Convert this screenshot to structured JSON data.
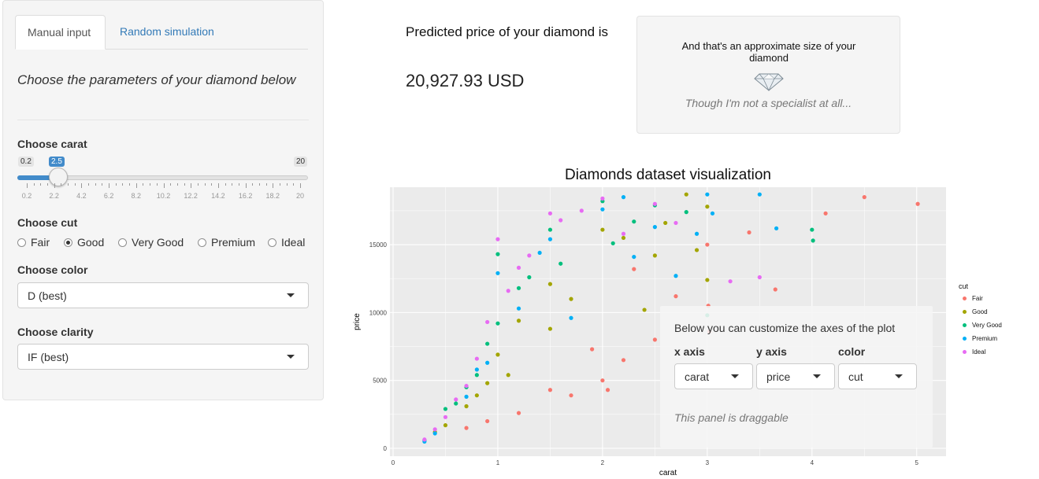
{
  "sidebar": {
    "tabs": [
      {
        "label": "Manual input",
        "active": true
      },
      {
        "label": "Random simulation",
        "active": false
      }
    ],
    "subtitle": "Choose the parameters of your diamond below",
    "carat": {
      "label": "Choose carat",
      "min_label": "0.2",
      "max_label": "20",
      "value_label": "2.5",
      "value": 2.5,
      "min": 0.2,
      "max": 20,
      "ticks": [
        "0.2",
        "2.2",
        "4.2",
        "6.2",
        "8.2",
        "10.2",
        "12.2",
        "14.2",
        "16.2",
        "18.2",
        "20"
      ]
    },
    "cut": {
      "label": "Choose cut",
      "options": [
        "Fair",
        "Good",
        "Very Good",
        "Premium",
        "Ideal"
      ],
      "selected": "Good"
    },
    "color": {
      "label": "Choose color",
      "value": "D (best)"
    },
    "clarity": {
      "label": "Choose clarity",
      "value": "IF (best)"
    }
  },
  "prediction": {
    "title": "Predicted price of your diamond is",
    "value": "20,927.93 USD"
  },
  "size_box": {
    "title": "And that's an approximate size of your diamond",
    "icon": "diamond-icon",
    "note": "Though I'm not a specialist at all..."
  },
  "chart_data": {
    "type": "scatter",
    "title": "Diamonds dataset visualization",
    "xlabel": "carat",
    "ylabel": "price",
    "xlim": [
      0,
      5.25
    ],
    "ylim": [
      0,
      19000
    ],
    "xticks": [
      "0",
      "1",
      "2",
      "3",
      "4",
      "5"
    ],
    "yticks": [
      "0",
      "5000",
      "10000",
      "15000"
    ],
    "grid": true,
    "legend": {
      "title": "cut",
      "placement": "right",
      "entries": [
        {
          "name": "Fair",
          "color": "#f8766d"
        },
        {
          "name": "Good",
          "color": "#a3a500"
        },
        {
          "name": "Very Good",
          "color": "#00bf7d"
        },
        {
          "name": "Premium",
          "color": "#00b0f6"
        },
        {
          "name": "Ideal",
          "color": "#e76bf3"
        }
      ]
    },
    "series": [
      {
        "name": "Fair",
        "points": [
          [
            4.5,
            18500
          ],
          [
            5.01,
            18000
          ],
          [
            4.13,
            17300
          ],
          [
            3.4,
            15900
          ],
          [
            3.65,
            11700
          ],
          [
            3.02,
            8600
          ],
          [
            2.5,
            8000
          ],
          [
            2.2,
            6500
          ],
          [
            2.0,
            5000
          ],
          [
            1.7,
            3900
          ],
          [
            1.5,
            4300
          ],
          [
            3.0,
            15000
          ],
          [
            2.7,
            11200
          ],
          [
            1.2,
            2600
          ],
          [
            0.9,
            2000
          ],
          [
            0.7,
            1500
          ],
          [
            2.3,
            13200
          ],
          [
            1.9,
            7300
          ],
          [
            3.01,
            10500
          ],
          [
            2.05,
            4300
          ]
        ]
      },
      {
        "name": "Good",
        "points": [
          [
            2.8,
            18700
          ],
          [
            3.0,
            17800
          ],
          [
            2.5,
            14200
          ],
          [
            2.0,
            16100
          ],
          [
            1.5,
            12100
          ],
          [
            1.0,
            6900
          ],
          [
            1.2,
            9400
          ],
          [
            0.9,
            4800
          ],
          [
            0.7,
            3100
          ],
          [
            0.5,
            1700
          ],
          [
            2.2,
            15500
          ],
          [
            1.7,
            11000
          ],
          [
            0.4,
            1200
          ],
          [
            3.0,
            12400
          ],
          [
            2.6,
            16600
          ],
          [
            1.5,
            8800
          ],
          [
            1.1,
            5400
          ],
          [
            0.8,
            3900
          ],
          [
            2.4,
            10200
          ],
          [
            2.9,
            14600
          ]
        ]
      },
      {
        "name": "Very Good",
        "points": [
          [
            4.0,
            16100
          ],
          [
            4.01,
            15300
          ],
          [
            2.5,
            17900
          ],
          [
            2.0,
            18200
          ],
          [
            1.5,
            16100
          ],
          [
            1.0,
            14300
          ],
          [
            1.2,
            11800
          ],
          [
            0.9,
            7700
          ],
          [
            0.7,
            4500
          ],
          [
            0.5,
            2900
          ],
          [
            0.3,
            600
          ],
          [
            2.3,
            16700
          ],
          [
            1.6,
            13600
          ],
          [
            1.0,
            9200
          ],
          [
            0.8,
            5400
          ],
          [
            2.8,
            17400
          ],
          [
            2.1,
            15100
          ],
          [
            1.3,
            12600
          ],
          [
            0.6,
            3300
          ],
          [
            3.0,
            9800
          ]
        ]
      },
      {
        "name": "Premium",
        "points": [
          [
            3.5,
            18700
          ],
          [
            3.66,
            16200
          ],
          [
            3.0,
            18700
          ],
          [
            2.5,
            16300
          ],
          [
            2.0,
            17600
          ],
          [
            1.5,
            15400
          ],
          [
            1.0,
            12900
          ],
          [
            1.2,
            10300
          ],
          [
            0.9,
            6300
          ],
          [
            0.7,
            3800
          ],
          [
            0.4,
            1100
          ],
          [
            2.3,
            14100
          ],
          [
            1.7,
            9600
          ],
          [
            2.7,
            12700
          ],
          [
            3.05,
            17300
          ],
          [
            2.2,
            18500
          ],
          [
            1.4,
            14400
          ],
          [
            0.8,
            5800
          ],
          [
            0.3,
            500
          ],
          [
            2.9,
            15800
          ]
        ]
      },
      {
        "name": "Ideal",
        "points": [
          [
            3.5,
            12600
          ],
          [
            3.22,
            12300
          ],
          [
            2.5,
            18000
          ],
          [
            2.0,
            18400
          ],
          [
            1.5,
            17300
          ],
          [
            1.0,
            15400
          ],
          [
            1.2,
            13300
          ],
          [
            0.9,
            9300
          ],
          [
            0.7,
            4600
          ],
          [
            0.5,
            2300
          ],
          [
            0.3,
            650
          ],
          [
            1.6,
            16800
          ],
          [
            2.2,
            15800
          ],
          [
            1.1,
            11600
          ],
          [
            0.8,
            6600
          ],
          [
            2.7,
            16600
          ],
          [
            1.8,
            17500
          ],
          [
            1.3,
            14200
          ],
          [
            0.6,
            3600
          ],
          [
            0.4,
            1400
          ]
        ]
      }
    ]
  },
  "axes_panel": {
    "title": "Below you can customize the axes of the plot",
    "x_axis": {
      "label": "x axis",
      "value": "carat"
    },
    "y_axis": {
      "label": "y axis",
      "value": "price"
    },
    "color": {
      "label": "color",
      "value": "cut"
    },
    "note": "This panel is draggable"
  }
}
